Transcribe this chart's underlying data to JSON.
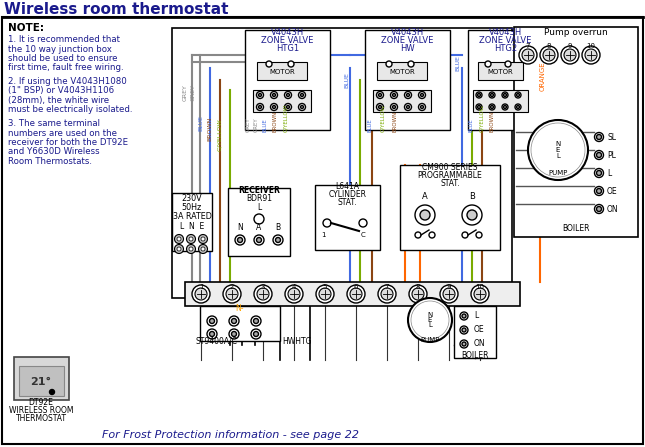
{
  "title": "Wireless room thermostat",
  "title_color": "#1a1a8c",
  "bg_color": "#ffffff",
  "note_title": "NOTE:",
  "note_color": "#1a1a8c",
  "note_lines": [
    "1. It is recommended that",
    "the 10 way junction box",
    "should be used to ensure",
    "first time, fault free wiring.",
    "2. If using the V4043H1080",
    "(1\" BSP) or V4043H1106",
    "(28mm), the white wire",
    "must be electrically isolated.",
    "3. The same terminal",
    "numbers are used on the",
    "receiver for both the DT92E",
    "and Y6630D Wireless",
    "Room Thermostats."
  ],
  "valve1_label": [
    "V4043H",
    "ZONE VALVE",
    "HTG1"
  ],
  "valve2_label": [
    "V4043H",
    "ZONE VALVE",
    "HW"
  ],
  "valve3_label": [
    "V4043H",
    "ZONE VALVE",
    "HTG2"
  ],
  "frost_text": "For Frost Protection information - see page 22",
  "frost_color": "#1a1a8c",
  "pump_overrun_label": "Pump overrun",
  "dt92e_label": [
    "DT92E",
    "WIRELESS ROOM",
    "THERMOSTAT"
  ],
  "st9400_label": "ST9400A/C",
  "hw_htg_label": "HWHTG",
  "boiler_label": "BOILER",
  "boiler_label2": "BOILER",
  "receiver_label": [
    "RECEIVER",
    "BDR91"
  ],
  "l641a_label": [
    "L641A",
    "CYLINDER",
    "STAT."
  ],
  "cm900_label": [
    "CM900 SERIES",
    "PROGRAMMABLE",
    "STAT."
  ],
  "power_label": [
    "230V",
    "50Hz",
    "3A RATED"
  ],
  "lne_label": "L  N  E",
  "wire_grey": "#888888",
  "wire_blue": "#4169e1",
  "wire_brown": "#8B4513",
  "wire_gyellow": "#7aab00",
  "wire_orange": "#FF6600",
  "wire_black": "#000000",
  "label_color": "#1a1a8c",
  "text_color": "#000000",
  "diagram_bg": "#f5f5f5"
}
